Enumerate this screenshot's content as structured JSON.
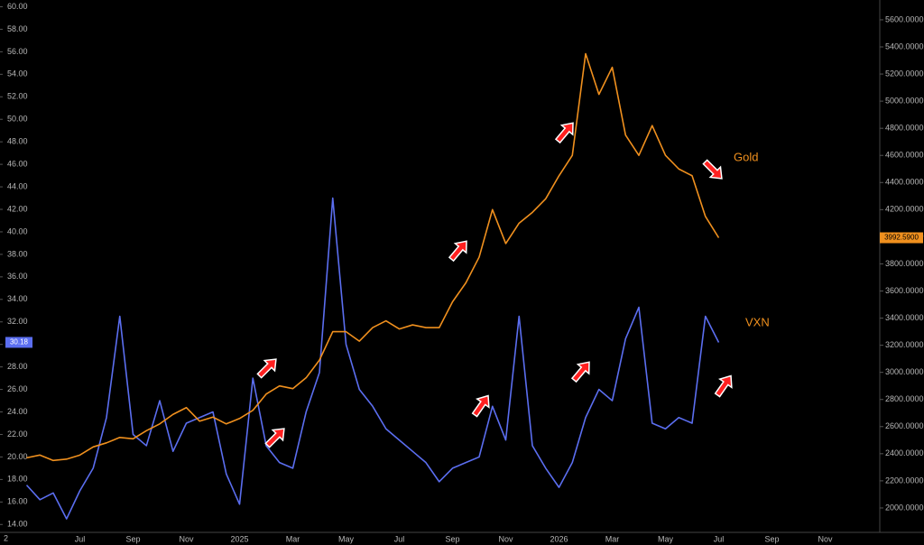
{
  "chart_data": {
    "type": "line",
    "categories": [
      null,
      null,
      null,
      null,
      "Jul",
      null,
      null,
      null,
      "Sep",
      null,
      null,
      null,
      "Nov",
      null,
      null,
      null,
      "2025",
      null,
      null,
      null,
      "Mar",
      null,
      null,
      null,
      "May",
      null,
      null,
      null,
      "Jul",
      null,
      null,
      null,
      "Sep",
      null,
      null,
      null,
      "Nov",
      null,
      null,
      null,
      "2026",
      null,
      null,
      null,
      "Mar",
      null,
      null,
      null,
      "May",
      null,
      null,
      null,
      "Jul",
      null,
      null,
      null,
      "Sep",
      null,
      null,
      null,
      "Nov",
      null,
      null,
      null,
      null
    ],
    "series": [
      {
        "name": "VXN",
        "color": "#5b6ef0",
        "axis": "y",
        "values": [
          17.5,
          16.2,
          16.8,
          14.5,
          17.0,
          19.0,
          23.5,
          32.5,
          22.0,
          21.0,
          25.0,
          20.5,
          23.0,
          23.5,
          24.0,
          18.5,
          15.8,
          27.0,
          21.0,
          19.5,
          19.0,
          24.0,
          27.5,
          43.0,
          30.0,
          26.0,
          24.5,
          22.5,
          21.5,
          20.5,
          19.5,
          17.8,
          19.0,
          19.5,
          20.0,
          24.5,
          21.5,
          32.5,
          21.0,
          19.0,
          17.3,
          19.5,
          23.5,
          26.0,
          25.0,
          30.5,
          33.3,
          23.0,
          22.5,
          23.5,
          23.0,
          32.5,
          30.18,
          null,
          null,
          null,
          null,
          null,
          null,
          null,
          null,
          null,
          null,
          null,
          null
        ],
        "value_labels": [
          null,
          null,
          null,
          null,
          null,
          null,
          null,
          null,
          null,
          null,
          null,
          null,
          null,
          null,
          null,
          null,
          null,
          null,
          null,
          null,
          null,
          null,
          null,
          null,
          null,
          null,
          null,
          null,
          null,
          null,
          null,
          null,
          null,
          null,
          null,
          null,
          null,
          null,
          null,
          null,
          null,
          null,
          null,
          null,
          null,
          null,
          null,
          null,
          null,
          null,
          null,
          null,
          "30.18",
          null,
          null,
          null,
          null,
          null,
          null,
          null,
          null,
          null,
          null,
          null,
          null
        ]
      },
      {
        "name": "Gold",
        "color": "#f0901e",
        "axis": "y2",
        "values": [
          2370,
          2390,
          2350,
          2360,
          2390,
          2450,
          2480,
          2520,
          2510,
          2570,
          2620,
          2690,
          2740,
          2640,
          2670,
          2620,
          2660,
          2720,
          2840,
          2900,
          2880,
          2960,
          3090,
          3300,
          3300,
          3230,
          3330,
          3380,
          3320,
          3350,
          3330,
          3330,
          3520,
          3660,
          3850,
          4200,
          3950,
          4100,
          4180,
          4280,
          4450,
          4600,
          5350,
          5050,
          5250,
          4750,
          4600,
          4820,
          4600,
          4500,
          4450,
          4150,
          3992.59,
          null,
          null,
          null,
          null,
          null,
          null,
          null,
          null,
          null,
          null,
          null,
          null
        ],
        "value_labels": [
          null,
          null,
          null,
          null,
          null,
          null,
          null,
          null,
          null,
          null,
          null,
          null,
          null,
          null,
          null,
          null,
          null,
          null,
          null,
          null,
          null,
          null,
          null,
          null,
          null,
          null,
          null,
          null,
          null,
          null,
          null,
          null,
          null,
          null,
          null,
          null,
          null,
          null,
          null,
          null,
          null,
          null,
          null,
          null,
          null,
          null,
          null,
          null,
          null,
          null,
          null,
          null,
          "3992.5900",
          null,
          null,
          null,
          null,
          null,
          null,
          null,
          null,
          null,
          null,
          null,
          null
        ]
      }
    ],
    "ylim": [
      13.3,
      60.6
    ],
    "yticks": [
      {
        "value": 14,
        "label": "14.00"
      },
      {
        "value": 16,
        "label": "16.00"
      },
      {
        "value": 18,
        "label": "18.00"
      },
      {
        "value": 20,
        "label": "20.00"
      },
      {
        "value": 22,
        "label": "22.00"
      },
      {
        "value": 24,
        "label": "24.00"
      },
      {
        "value": 26,
        "label": "26.00"
      },
      {
        "value": 28,
        "label": "28.00"
      },
      {
        "value": 30,
        "label": "30.00"
      },
      {
        "value": 32,
        "label": "32.00"
      },
      {
        "value": 34,
        "label": "34.00"
      },
      {
        "value": 36,
        "label": "36.00"
      },
      {
        "value": 38,
        "label": "38.00"
      },
      {
        "value": 40,
        "label": "40.00"
      },
      {
        "value": 42,
        "label": "42.00"
      },
      {
        "value": 44,
        "label": "44.00"
      },
      {
        "value": 46,
        "label": "46.00"
      },
      {
        "value": 48,
        "label": "48.00"
      },
      {
        "value": 50,
        "label": "50.00"
      },
      {
        "value": 52,
        "label": "52.00"
      },
      {
        "value": 54,
        "label": "54.00"
      },
      {
        "value": 56,
        "label": "56.00"
      },
      {
        "value": 58,
        "label": "58.00"
      },
      {
        "value": 60,
        "label": "60.00"
      }
    ],
    "y2lim": [
      1820,
      5746
    ],
    "y2ticks": [
      {
        "value": 2000,
        "label": "2000.0000"
      },
      {
        "value": 2200,
        "label": "2200.0000"
      },
      {
        "value": 2400,
        "label": "2400.0000"
      },
      {
        "value": 2600,
        "label": "2600.0000"
      },
      {
        "value": 2800,
        "label": "2800.0000"
      },
      {
        "value": 3000,
        "label": "3000.0000"
      },
      {
        "value": 3200,
        "label": "3200.0000"
      },
      {
        "value": 3400,
        "label": "3400.0000"
      },
      {
        "value": 3600,
        "label": "3600.0000"
      },
      {
        "value": 3800,
        "label": "3800.0000"
      },
      {
        "value": 4000,
        "label": "4000.0000"
      },
      {
        "value": 4200,
        "label": "4200.0000"
      },
      {
        "value": 4400,
        "label": "4400.0000"
      },
      {
        "value": 4600,
        "label": "4600.0000"
      },
      {
        "value": 4800,
        "label": "4800.0000"
      },
      {
        "value": 5000,
        "label": "5000.0000"
      },
      {
        "value": 5200,
        "label": "5200.0000"
      },
      {
        "value": 5400,
        "label": "5400.0000"
      },
      {
        "value": 5600,
        "label": "5600.0000"
      }
    ],
    "grid": false,
    "annotations": [
      "Gold",
      "VXN"
    ],
    "corner_label": "2"
  }
}
